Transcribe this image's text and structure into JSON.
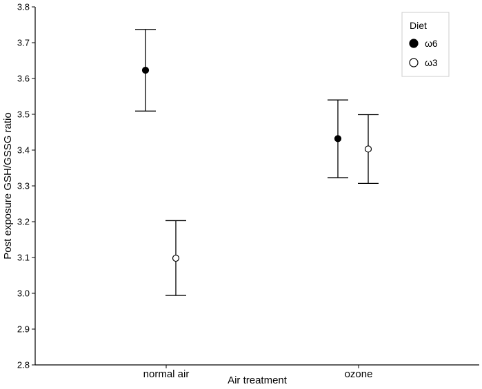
{
  "chart_data": {
    "type": "scatter",
    "subtype": "dot-and-error-bar",
    "xlabel": "Air treatment",
    "ylabel": "Post exposure GSH/GSSG ratio",
    "categories": [
      "normal air",
      "ozone"
    ],
    "ylim": [
      2.8,
      3.8
    ],
    "yticks": [
      2.8,
      2.9,
      3.0,
      3.1,
      3.2,
      3.3,
      3.4,
      3.5,
      3.6,
      3.7,
      3.8
    ],
    "ytick_labels": [
      "2.8",
      "2.9",
      "3.0",
      "3.1",
      "3.2",
      "3.3",
      "3.4",
      "3.5",
      "3.6",
      "3.7",
      "3.8"
    ],
    "grid": false,
    "legend": {
      "title": "Diet",
      "position": "top-right"
    },
    "series": [
      {
        "name": "ω6",
        "marker": "filled-circle",
        "color": "#000000",
        "values": [
          3.623,
          3.432
        ],
        "lower": [
          3.509,
          3.323
        ],
        "upper": [
          3.737,
          3.54
        ]
      },
      {
        "name": "ω3",
        "marker": "open-circle",
        "color": "#000000",
        "values": [
          3.098,
          3.403
        ],
        "lower": [
          2.994,
          3.307
        ],
        "upper": [
          3.203,
          3.499
        ]
      }
    ]
  }
}
